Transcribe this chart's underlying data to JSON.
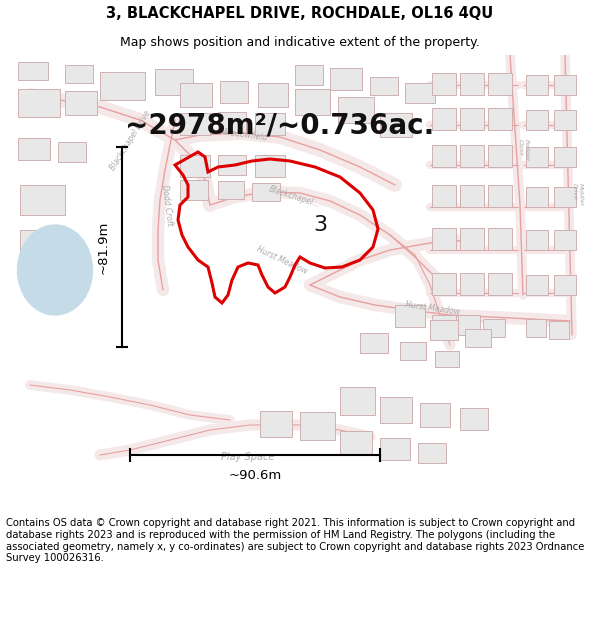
{
  "title": "3, BLACKCHAPEL DRIVE, ROCHDALE, OL16 4QU",
  "subtitle": "Map shows position and indicative extent of the property.",
  "area_text": "~2978m²/~0.736ac.",
  "label_3": "3",
  "dim_width": "~90.6m",
  "dim_height": "~81.9m",
  "footer": "Contains OS data © Crown copyright and database right 2021. This information is subject to Crown copyright and database rights 2023 and is reproduced with the permission of HM Land Registry. The polygons (including the associated geometry, namely x, y co-ordinates) are subject to Crown copyright and database rights 2023 Ordnance Survey 100026316.",
  "bg_color": "#ffffff",
  "map_bg": "#ffffff",
  "road_fill": "#f5e8e8",
  "road_edge": "#e8a0a0",
  "block_face": "#e8e8e8",
  "block_edge": "#d0b0b0",
  "red_boundary": "#dd0000",
  "light_blue": "#c5dce8",
  "title_fontsize": 10.5,
  "subtitle_fontsize": 9,
  "area_fontsize": 20,
  "footer_fontsize": 7.2,
  "label_color": "#aaaaaa",
  "dim_color": "#000000"
}
